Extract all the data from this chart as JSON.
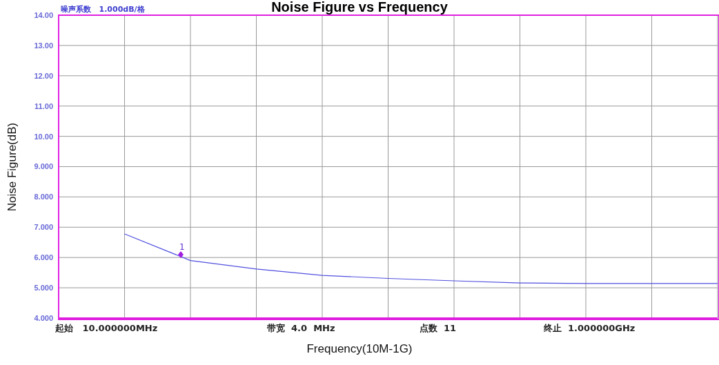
{
  "chart_data": {
    "type": "line",
    "title": "Noise Figure vs Frequency",
    "xlabel": "Frequency(10M-1G)",
    "ylabel": "Noise Figure(dB)",
    "categories": [
      null,
      null,
      null,
      null,
      null,
      null,
      null,
      null,
      null,
      null,
      null
    ],
    "ylim": [
      4,
      14
    ],
    "yticks": [
      {
        "value": 4,
        "label": "4.000"
      },
      {
        "value": 5,
        "label": "5.000"
      },
      {
        "value": 6,
        "label": "6.000"
      },
      {
        "value": 7,
        "label": "7.000"
      },
      {
        "value": 8,
        "label": "8.000"
      },
      {
        "value": 9,
        "label": "9.000"
      },
      {
        "value": 10,
        "label": "10.00"
      },
      {
        "value": 11,
        "label": "11.00"
      },
      {
        "value": 12,
        "label": "12.00"
      },
      {
        "value": 13,
        "label": "13.00"
      },
      {
        "value": 14,
        "label": "14.00"
      }
    ],
    "tick_labels": "y",
    "grid": true,
    "legend": false,
    "series": [
      {
        "color": "#5050e0",
        "marker": "none",
        "values": [
          null,
          6.78,
          5.9,
          5.62,
          5.41,
          5.31,
          5.23,
          5.16,
          5.14,
          5.14,
          5.14
        ]
      }
    ],
    "annotations": [
      "1",
      "噪声系数   1.000dB/格",
      "起始   10.000000MHz",
      "带宽  4.0  MHz",
      "点数  11",
      "终止  1.000000GHz"
    ]
  }
}
